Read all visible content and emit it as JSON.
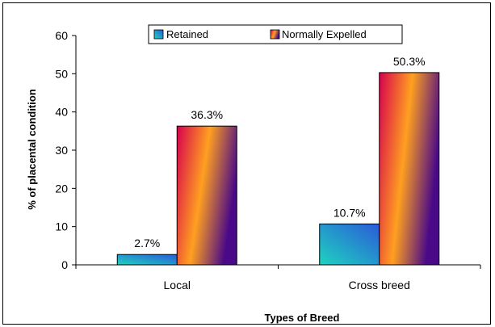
{
  "chart_data": {
    "type": "bar",
    "categories": [
      "Local",
      "Cross breed"
    ],
    "series": [
      {
        "name": "Retained",
        "values": [
          2.7,
          10.7
        ],
        "labels": [
          "2.7%",
          "10.7%"
        ]
      },
      {
        "name": "Normally Expelled",
        "values": [
          36.3,
          50.3
        ],
        "labels": [
          "36.3%",
          "50.3%"
        ]
      }
    ],
    "xlabel": "Types of Breed",
    "ylabel": "% of placental condition",
    "ylim": [
      0,
      60
    ],
    "yticks": [
      0,
      10,
      20,
      30,
      40,
      50,
      60
    ],
    "grid": false,
    "legend": "top-center"
  },
  "colors": {
    "retained_start": "#1fd3c0",
    "retained_end": "#2a5bd8",
    "expelled_start": "#d7004e",
    "expelled_mid": "#ffa020",
    "expelled_end": "#4a0a88"
  }
}
